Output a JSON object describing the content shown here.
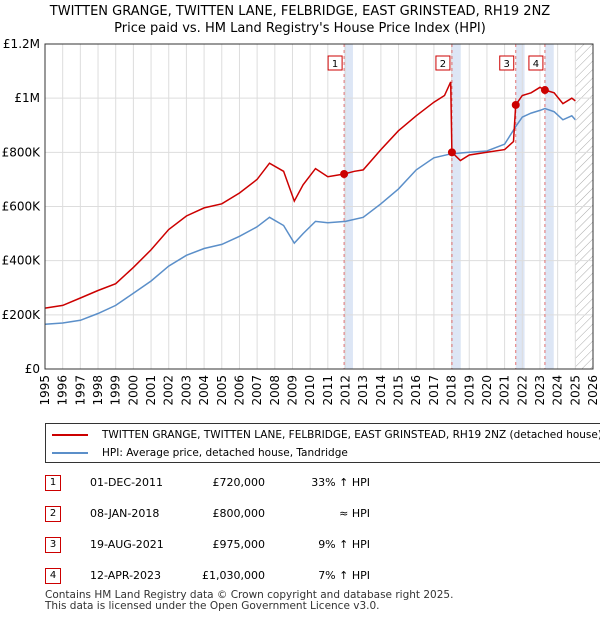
{
  "title_line1": "TWITTEN GRANGE, TWITTEN LANE, FELBRIDGE, EAST GRINSTEAD, RH19 2NZ",
  "title_line2": "Price paid vs. HM Land Registry's House Price Index (HPI)",
  "legend": {
    "property": "TWITTEN GRANGE, TWITTEN LANE, FELBRIDGE, EAST GRINSTEAD, RH19 2NZ (detached house)",
    "hpi": "HPI: Average price, detached house, Tandridge"
  },
  "transactions": [
    {
      "num": "1",
      "date": "01-DEC-2011",
      "price": "£720,000",
      "rel": "33% ↑ HPI"
    },
    {
      "num": "2",
      "date": "08-JAN-2018",
      "price": "£800,000",
      "rel": "≈ HPI"
    },
    {
      "num": "3",
      "date": "19-AUG-2021",
      "price": "£975,000",
      "rel": "9% ↑ HPI"
    },
    {
      "num": "4",
      "date": "12-APR-2023",
      "price": "£1,030,000",
      "rel": "7% ↑ HPI"
    }
  ],
  "footer_line1": "Contains HM Land Registry data © Crown copyright and database right 2025.",
  "footer_line2": "This data is licensed under the Open Government Licence v3.0.",
  "colors": {
    "property": "#cc0000",
    "hpi": "#5b8fc9",
    "shade": "#dde6f5",
    "grid": "#dddddd",
    "marker_line": "#e07070"
  },
  "chart_data": {
    "type": "line",
    "xlim": [
      1995,
      2026
    ],
    "ylim": [
      0,
      1200000
    ],
    "yticks": [
      0,
      200000,
      400000,
      600000,
      800000,
      1000000,
      1200000
    ],
    "ytick_labels": [
      "£0",
      "£200K",
      "£400K",
      "£600K",
      "£800K",
      "£1M",
      "£1.2M"
    ],
    "xticks": [
      1995,
      1996,
      1997,
      1998,
      1999,
      2000,
      2001,
      2002,
      2003,
      2004,
      2005,
      2006,
      2007,
      2008,
      2009,
      2010,
      2011,
      2012,
      2013,
      2014,
      2015,
      2016,
      2017,
      2018,
      2019,
      2020,
      2021,
      2022,
      2023,
      2024,
      2025,
      2026
    ],
    "sales": [
      {
        "label": "1",
        "x": 2011.92,
        "y": 720000
      },
      {
        "label": "2",
        "x": 2018.02,
        "y": 800000
      },
      {
        "label": "3",
        "x": 2021.63,
        "y": 975000
      },
      {
        "label": "4",
        "x": 2023.28,
        "y": 1030000
      }
    ],
    "shaded_ranges": [
      [
        2011.92,
        2012.42
      ],
      [
        2018.02,
        2018.52
      ],
      [
        2021.63,
        2022.13
      ],
      [
        2023.28,
        2023.78
      ]
    ],
    "future_from": 2025.0,
    "series": [
      {
        "name": "TWITTEN GRANGE, TWITTEN LANE, FELBRIDGE, EAST GRINSTEAD, RH19 2NZ (detached house)",
        "x": [
          1995,
          1996,
          1997,
          1998,
          1999,
          2000,
          2001,
          2002,
          2003,
          2004,
          2005,
          2006,
          2007,
          2007.7,
          2008.5,
          2009.1,
          2009.6,
          2010.3,
          2011,
          2011.92,
          2012.5,
          2013,
          2014,
          2015,
          2016,
          2017,
          2017.6,
          2017.95,
          2018.02,
          2018.5,
          2019,
          2020,
          2021,
          2021.5,
          2021.63,
          2022,
          2022.5,
          2023,
          2023.28,
          2023.8,
          2024.3,
          2024.8,
          2025
        ],
        "y": [
          225000,
          235000,
          262000,
          290000,
          315000,
          375000,
          440000,
          515000,
          565000,
          595000,
          610000,
          650000,
          700000,
          760000,
          730000,
          620000,
          680000,
          740000,
          710000,
          720000,
          730000,
          735000,
          810000,
          880000,
          935000,
          985000,
          1010000,
          1060000,
          800000,
          770000,
          790000,
          800000,
          810000,
          840000,
          975000,
          1010000,
          1020000,
          1040000,
          1030000,
          1020000,
          980000,
          1000000,
          990000
        ]
      },
      {
        "name": "HPI: Average price, detached house, Tandridge",
        "x": [
          1995,
          1996,
          1997,
          1998,
          1999,
          2000,
          2001,
          2002,
          2003,
          2004,
          2005,
          2006,
          2007,
          2007.7,
          2008.5,
          2009.1,
          2009.6,
          2010.3,
          2011,
          2012,
          2013,
          2014,
          2015,
          2016,
          2017,
          2018,
          2019,
          2020,
          2021,
          2021.63,
          2022,
          2022.5,
          2023,
          2023.28,
          2023.8,
          2024.3,
          2024.8,
          2025
        ],
        "y": [
          165000,
          170000,
          180000,
          205000,
          235000,
          280000,
          325000,
          380000,
          420000,
          445000,
          460000,
          490000,
          525000,
          560000,
          530000,
          465000,
          500000,
          545000,
          540000,
          545000,
          560000,
          610000,
          665000,
          735000,
          780000,
          795000,
          800000,
          805000,
          830000,
          895000,
          930000,
          945000,
          955000,
          962000,
          950000,
          920000,
          935000,
          920000
        ]
      }
    ]
  }
}
